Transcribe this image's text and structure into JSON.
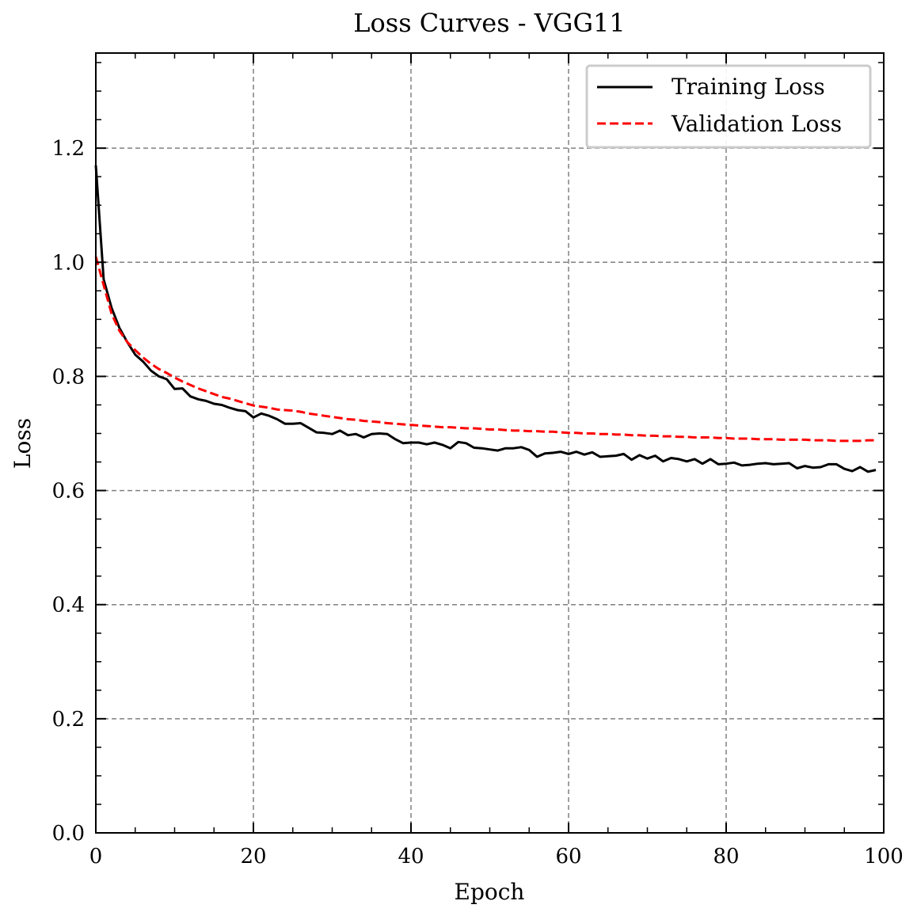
{
  "chart_data": {
    "type": "line",
    "title": "Loss Curves - VGG11",
    "xlabel": "Epoch",
    "ylabel": "Loss",
    "xlim": [
      0,
      100
    ],
    "ylim": [
      0,
      1.3667
    ],
    "xticks": [
      "0",
      "20",
      "40",
      "60",
      "80",
      "100"
    ],
    "yticks": [
      "0.0",
      "0.2",
      "0.4",
      "0.6",
      "0.8",
      "1.0",
      "1.2"
    ],
    "grid": true,
    "legend_position": "upper right",
    "x": [
      0,
      1,
      2,
      3,
      4,
      5,
      6,
      7,
      8,
      9,
      10,
      11,
      12,
      13,
      14,
      15,
      16,
      17,
      18,
      19,
      20,
      21,
      22,
      23,
      24,
      25,
      26,
      27,
      28,
      29,
      30,
      31,
      32,
      33,
      34,
      35,
      36,
      37,
      38,
      39,
      40,
      41,
      42,
      43,
      44,
      45,
      46,
      47,
      48,
      49,
      50,
      51,
      52,
      53,
      54,
      55,
      56,
      57,
      58,
      59,
      60,
      61,
      62,
      63,
      64,
      65,
      66,
      67,
      68,
      69,
      70,
      71,
      72,
      73,
      74,
      75,
      76,
      77,
      78,
      79,
      80,
      81,
      82,
      83,
      84,
      85,
      86,
      87,
      88,
      89,
      90,
      91,
      92,
      93,
      94,
      95,
      96,
      97,
      98,
      99
    ],
    "series": [
      {
        "name": "Training Loss",
        "color": "#000000",
        "style": "solid",
        "values": [
          1.17,
          0.97,
          0.92,
          0.885,
          0.86,
          0.838,
          0.826,
          0.81,
          0.8,
          0.795,
          0.778,
          0.779,
          0.765,
          0.76,
          0.757,
          0.752,
          0.75,
          0.745,
          0.741,
          0.739,
          0.728,
          0.735,
          0.731,
          0.725,
          0.717,
          0.717,
          0.718,
          0.71,
          0.702,
          0.701,
          0.699,
          0.705,
          0.697,
          0.699,
          0.693,
          0.699,
          0.7,
          0.699,
          0.69,
          0.683,
          0.684,
          0.684,
          0.681,
          0.684,
          0.68,
          0.674,
          0.685,
          0.683,
          0.675,
          0.674,
          0.672,
          0.67,
          0.674,
          0.674,
          0.676,
          0.671,
          0.659,
          0.665,
          0.666,
          0.668,
          0.664,
          0.668,
          0.663,
          0.667,
          0.659,
          0.66,
          0.661,
          0.664,
          0.654,
          0.662,
          0.656,
          0.661,
          0.651,
          0.657,
          0.655,
          0.651,
          0.655,
          0.647,
          0.655,
          0.646,
          0.647,
          0.649,
          0.644,
          0.645,
          0.647,
          0.648,
          0.646,
          0.647,
          0.648,
          0.639,
          0.643,
          0.64,
          0.641,
          0.646,
          0.646,
          0.638,
          0.634,
          0.641,
          0.633,
          0.636
        ]
      },
      {
        "name": "Validation Loss",
        "color": "#ff0000",
        "style": "dashed",
        "values": [
          1.01,
          0.96,
          0.91,
          0.88,
          0.86,
          0.846,
          0.833,
          0.822,
          0.813,
          0.806,
          0.798,
          0.791,
          0.785,
          0.779,
          0.774,
          0.769,
          0.764,
          0.761,
          0.757,
          0.753,
          0.749,
          0.747,
          0.745,
          0.742,
          0.741,
          0.74,
          0.738,
          0.735,
          0.733,
          0.731,
          0.729,
          0.727,
          0.725,
          0.724,
          0.722,
          0.721,
          0.72,
          0.718,
          0.717,
          0.716,
          0.715,
          0.714,
          0.713,
          0.712,
          0.711,
          0.711,
          0.71,
          0.709,
          0.709,
          0.708,
          0.707,
          0.707,
          0.706,
          0.705,
          0.705,
          0.704,
          0.704,
          0.703,
          0.703,
          0.702,
          0.701,
          0.701,
          0.7,
          0.7,
          0.699,
          0.699,
          0.698,
          0.698,
          0.697,
          0.697,
          0.696,
          0.696,
          0.695,
          0.695,
          0.694,
          0.694,
          0.693,
          0.693,
          0.693,
          0.692,
          0.692,
          0.691,
          0.691,
          0.691,
          0.69,
          0.69,
          0.69,
          0.689,
          0.689,
          0.689,
          0.689,
          0.688,
          0.688,
          0.688,
          0.687,
          0.687,
          0.687,
          0.687,
          0.688,
          0.688
        ]
      }
    ]
  }
}
